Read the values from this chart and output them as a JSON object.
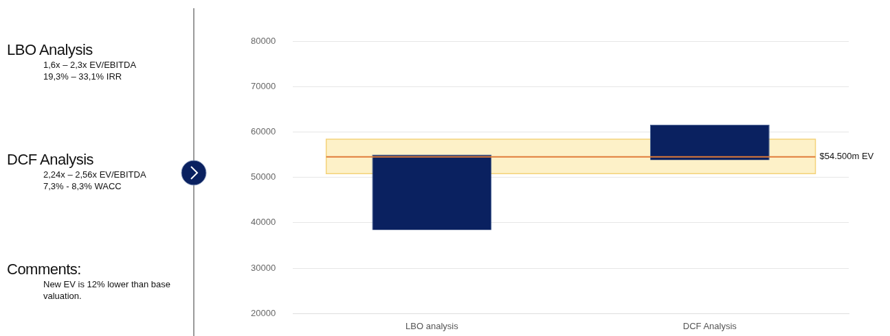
{
  "chart_data": {
    "type": "bar",
    "categories": [
      "LBO analysis",
      "DCF Analysis"
    ],
    "series": [
      {
        "color": "#0a2160",
        "values": [
          16600,
          7800
        ],
        "base": [
          38400,
          53800
        ]
      }
    ],
    "ylim": [
      20000,
      80000
    ],
    "yticks": [
      20000,
      30000,
      40000,
      50000,
      60000,
      70000,
      80000
    ],
    "grid": "y",
    "legend": false,
    "ref_lines": [
      {
        "axis": "y",
        "value": 54500,
        "label": "$54.500m EV",
        "color": "#e07b39"
      }
    ],
    "bands": [
      {
        "axis": "y",
        "from": 50800,
        "to": 58400,
        "color": "#fdf1c8"
      }
    ],
    "annotations": [
      "LBO Analysis\n1,6x – 2,3x EV/EBITDA\n19,3% – 33,1% IRR",
      "DCF Analysis\n2,24x – 2,56x EV/EBITDA\n7,3% - 8,3% WACC",
      "Comments:\nNew EV is 12% lower than base valuation."
    ]
  }
}
